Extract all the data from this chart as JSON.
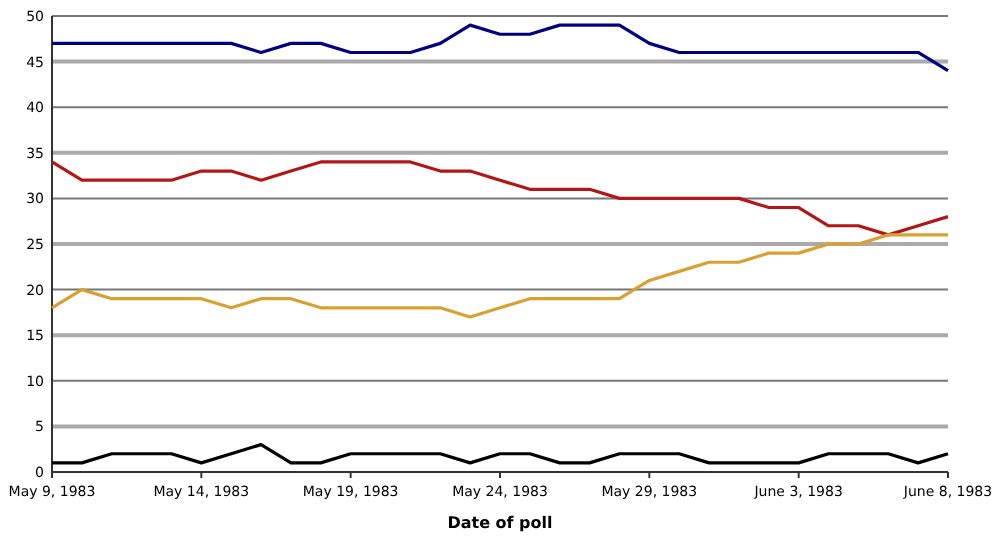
{
  "chart_data": {
    "type": "line",
    "xlabel": "Date of poll",
    "x": [
      "1983-05-09",
      "1983-05-10",
      "1983-05-11",
      "1983-05-12",
      "1983-05-13",
      "1983-05-14",
      "1983-05-15",
      "1983-05-16",
      "1983-05-17",
      "1983-05-18",
      "1983-05-19",
      "1983-05-20",
      "1983-05-21",
      "1983-05-22",
      "1983-05-23",
      "1983-05-24",
      "1983-05-25",
      "1983-05-26",
      "1983-05-27",
      "1983-05-28",
      "1983-05-29",
      "1983-05-30",
      "1983-05-31",
      "1983-06-01",
      "1983-06-02",
      "1983-06-03",
      "1983-06-04",
      "1983-06-05",
      "1983-06-06",
      "1983-06-07",
      "1983-06-08"
    ],
    "series": [
      {
        "color": "#000080",
        "values": [
          47,
          47,
          47,
          47,
          47,
          47,
          47,
          46,
          47,
          47,
          46,
          46,
          46,
          47,
          49,
          48,
          48,
          49,
          49,
          49,
          47,
          46,
          46,
          46,
          46,
          46,
          46,
          46,
          46,
          46,
          44
        ]
      },
      {
        "color": "#b01818",
        "values": [
          34,
          32,
          32,
          32,
          32,
          33,
          33,
          32,
          33,
          34,
          34,
          34,
          34,
          33,
          33,
          32,
          31,
          31,
          31,
          30,
          30,
          30,
          30,
          30,
          29,
          29,
          27,
          27,
          26,
          27,
          28
        ]
      },
      {
        "color": "#d8a030",
        "values": [
          18,
          20,
          19,
          19,
          19,
          19,
          18,
          19,
          19,
          18,
          18,
          18,
          18,
          18,
          17,
          18,
          19,
          19,
          19,
          19,
          21,
          22,
          23,
          23,
          24,
          24,
          25,
          25,
          26,
          26,
          26
        ]
      },
      {
        "color": "#000000",
        "values": [
          1,
          1,
          2,
          2,
          2,
          1,
          2,
          3,
          1,
          1,
          2,
          2,
          2,
          2,
          1,
          2,
          2,
          1,
          1,
          2,
          2,
          2,
          1,
          1,
          1,
          1,
          2,
          2,
          2,
          1,
          2
        ]
      }
    ],
    "xlim": [
      "1983-05-09",
      "1983-06-08"
    ],
    "xticks": [
      {
        "value": "1983-05-09",
        "label": "May 9, 1983"
      },
      {
        "value": "1983-05-14",
        "label": "May 14, 1983"
      },
      {
        "value": "1983-05-19",
        "label": "May 19, 1983"
      },
      {
        "value": "1983-05-24",
        "label": "May 24, 1983"
      },
      {
        "value": "1983-05-29",
        "label": "May 29, 1983"
      },
      {
        "value": "1983-06-03",
        "label": "June 3, 1983"
      },
      {
        "value": "1983-06-08",
        "label": "June 8, 1983"
      }
    ],
    "ylim": [
      0,
      50
    ],
    "yticks": [
      0,
      5,
      10,
      15,
      20,
      25,
      30,
      35,
      40,
      45,
      50
    ],
    "grid": "y",
    "marker": "none",
    "line_style": "solid"
  }
}
